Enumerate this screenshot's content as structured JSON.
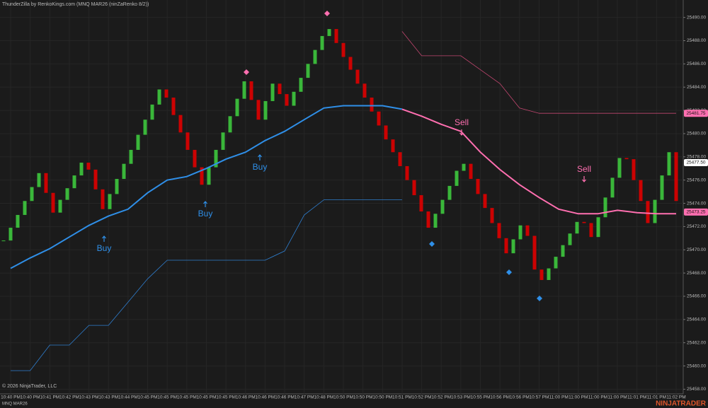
{
  "chart_data": {
    "type": "renko",
    "title": "ThunderZilla by RenkoKings.com (MNQ MAR26 (ninZaRenko 8/2))",
    "copyright": "© 2026 NinjaTrader, LLC",
    "instrument": "MNQ MAR26",
    "brand": "NINJATRADER",
    "categories": [
      "10:40 PM",
      "10:40 PM",
      "10:41 PM",
      "10:42 PM",
      "10:43 PM",
      "10:43 PM",
      "10:44 PM",
      "10:45 PM",
      "10:45 PM",
      "10:45 PM",
      "10:45 PM",
      "10:45 PM",
      "10:46 PM",
      "10:46 PM",
      "10:46 PM",
      "10:47 PM",
      "10:48 PM",
      "10:50 PM",
      "10:50 PM",
      "10:50 PM",
      "10:51 PM",
      "10:52 PM",
      "10:52 PM",
      "10:53 PM",
      "10:55 PM",
      "10:56 PM",
      "10:56 PM",
      "10:57 PM",
      "11:00 PM",
      "11:00 PM",
      "11:00 PM",
      "11:00 PM",
      "11:01 PM",
      "11:01 PM",
      "11:02 PM"
    ],
    "closes": [
      25470.8,
      25471.9,
      25473.0,
      25474.2,
      25475.4,
      25476.6,
      25474.9,
      25473.2,
      25474.3,
      25475.3,
      25476.4,
      25477.5,
      25476.9,
      25475.2,
      25473.5,
      25474.8,
      25476.1,
      25477.4,
      25478.6,
      25479.9,
      25481.2,
      25482.5,
      25483.8,
      25483.1,
      25481.6,
      25480.1,
      25478.6,
      25477.1,
      25475.6,
      25477.1,
      25478.6,
      25480.1,
      25481.5,
      25483.0,
      25484.5,
      25482.9,
      25481.2,
      25482.8,
      25484.3,
      25483.4,
      25482.4,
      25483.6,
      25484.8,
      25486.0,
      25487.2,
      25488.4,
      25489.0,
      25487.8,
      25486.6,
      25485.5,
      25484.3,
      25483.1,
      25481.9,
      25480.7,
      25479.5,
      25478.4,
      25477.2,
      25476.0,
      25474.7,
      25473.3,
      25471.9,
      25473.1,
      25474.3,
      25475.5,
      25476.8,
      25477.4,
      25476.1,
      25474.8,
      25473.6,
      25472.3,
      25471.0,
      25469.7,
      25470.9,
      25472.1,
      25471.2,
      25468.3,
      25467.4,
      25468.4,
      25469.4,
      25470.4,
      25471.4,
      25472.4,
      25472.3,
      25471.1,
      25472.8,
      25474.5,
      25476.2,
      25477.9,
      25477.8,
      25476.0,
      25474.2,
      25472.3,
      25474.3,
      25476.4,
      25478.4,
      25474.2
    ],
    "up_color": "#3ec93e",
    "down_color": "#e00000",
    "series": [
      {
        "name": "MA up",
        "color": "#2f8fe8",
        "values": [
          25468.4,
          25469.3,
          25470.1,
          25471.1,
          25472.1,
          25472.9,
          25473.5,
          25474.9,
          25476.0,
          25476.3,
          25477.0,
          25477.8,
          25478.4,
          25479.4,
          25480.2,
          25481.2,
          25482.2,
          25482.4,
          25482.4,
          25482.4,
          25482.1,
          null,
          null,
          null,
          null,
          null,
          null,
          null,
          null,
          null,
          null,
          null,
          null,
          null,
          null
        ]
      },
      {
        "name": "MA down",
        "color": "#ff6fb0",
        "values": [
          null,
          null,
          null,
          null,
          null,
          null,
          null,
          null,
          null,
          null,
          null,
          null,
          null,
          null,
          null,
          null,
          null,
          null,
          null,
          null,
          25482.1,
          25481.5,
          25480.8,
          25480.2,
          25478.4,
          25476.9,
          25475.6,
          25474.5,
          25473.5,
          25473.1,
          25473.1,
          25473.4,
          25473.2,
          25473.1,
          25473.1
        ]
      },
      {
        "name": "Stop long",
        "color": "#2f7fd0",
        "values": [
          25459.6,
          25459.6,
          25461.8,
          25461.8,
          25463.5,
          25463.5,
          25465.5,
          25467.5,
          25469.1,
          25469.1,
          25469.1,
          25469.1,
          25469.1,
          25469.1,
          25469.9,
          25473.0,
          25474.3,
          25474.3,
          25474.3,
          25474.3,
          25474.3,
          null,
          null,
          null,
          null,
          null,
          null,
          null,
          null,
          null,
          null,
          null,
          null,
          null,
          null
        ]
      },
      {
        "name": "Stop short",
        "color": "#c0466f",
        "values": [
          null,
          null,
          null,
          null,
          null,
          null,
          null,
          null,
          null,
          null,
          null,
          null,
          null,
          null,
          null,
          null,
          null,
          null,
          null,
          null,
          25488.8,
          25486.7,
          25486.7,
          25486.7,
          25485.5,
          25484.3,
          25482.2,
          25481.75,
          25481.75,
          25481.75,
          25481.75,
          25481.75,
          25481.75,
          25481.75,
          25481.75
        ]
      }
    ],
    "annotations": [
      "Buy",
      "Buy",
      "Buy",
      "Sell",
      "Sell"
    ],
    "price_markers": [
      {
        "value": 25481.75,
        "label": "25481.75",
        "color": "#ff6fb0"
      },
      {
        "value": 25477.5,
        "label": "25477.50",
        "color": "#ffffff"
      },
      {
        "value": 25473.25,
        "label": "25473.25",
        "color": "#ff6fb0"
      }
    ],
    "ylim": [
      25457.6,
      25491.5
    ],
    "yticks": [
      {
        "value": 25458,
        "label": "25458.00"
      },
      {
        "value": 25460,
        "label": "25460.00"
      },
      {
        "value": 25462,
        "label": "25462.00"
      },
      {
        "value": 25464,
        "label": "25464.00"
      },
      {
        "value": 25466,
        "label": "25466.00"
      },
      {
        "value": 25468,
        "label": "25468.00"
      },
      {
        "value": 25470,
        "label": "25470.00"
      },
      {
        "value": 25472,
        "label": "25472.00"
      },
      {
        "value": 25474,
        "label": "25474.00"
      },
      {
        "value": 25476,
        "label": "25476.00"
      },
      {
        "value": 25478,
        "label": "25478.00"
      },
      {
        "value": 25480,
        "label": "25480.00"
      },
      {
        "value": 25482,
        "label": "25482.00"
      },
      {
        "value": 25484,
        "label": "25484.00"
      },
      {
        "value": 25486,
        "label": "25486.00"
      },
      {
        "value": 25488,
        "label": "25488.00"
      },
      {
        "value": 25490,
        "label": "25490.00"
      }
    ],
    "grid": true
  }
}
